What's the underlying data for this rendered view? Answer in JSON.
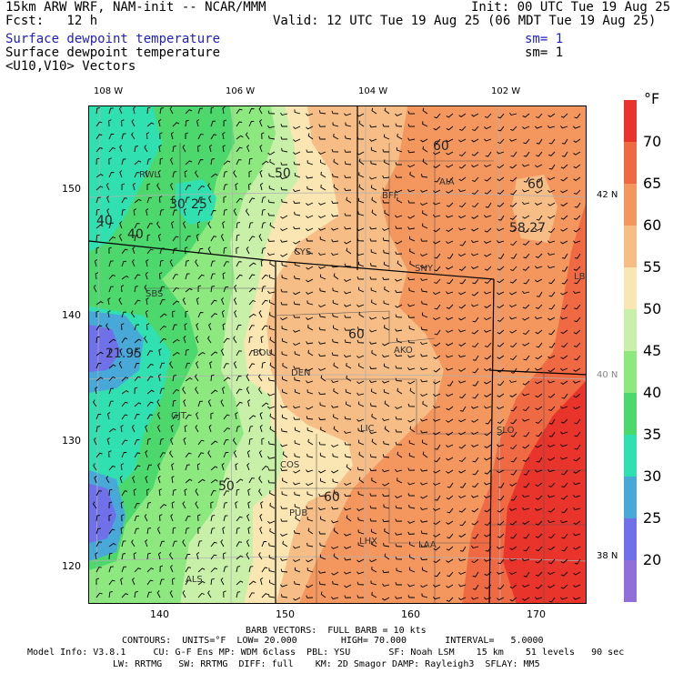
{
  "header": {
    "model_title": "15km ARW WRF, NAM-init -- NCAR/MMM",
    "init": "Init: 00 UTC Tue 19 Aug 25",
    "fcst": "Fcst:   12 h",
    "valid": "Valid: 12 UTC Tue 19 Aug 25 (06 MDT Tue 19 Aug 25)",
    "field1": "Surface dewpoint temperature",
    "field1_sm": "sm= 1",
    "field2": "Surface dewpoint temperature",
    "field2_sm": "sm= 1",
    "field3": "<U10,V10> Vectors"
  },
  "colors": {
    "field1_text": "#2020c0",
    "border": "#000000",
    "grid": "#b0b0b0"
  },
  "top_lon_labels": [
    "108 W",
    "106 W",
    "104 W",
    "102 W"
  ],
  "right_lat_labels": [
    "42 N",
    "40 N",
    "38 N"
  ],
  "left_grid_labels": [
    "150",
    "140",
    "130",
    "120"
  ],
  "bottom_grid_labels": [
    "140",
    "150",
    "160",
    "170"
  ],
  "legend": {
    "unit": "°F",
    "labels": [
      "70",
      "65",
      "60",
      "55",
      "50",
      "45",
      "40",
      "35",
      "30",
      "25",
      "20"
    ],
    "colors": [
      "#e8342a",
      "#ef6a42",
      "#f3975f",
      "#f6be86",
      "#f9e6b2",
      "#c8f0a8",
      "#8ee880",
      "#4cd86c",
      "#30e0b0",
      "#48a8d8",
      "#7070e8",
      "#9070d8"
    ]
  },
  "stations": [
    "RWL",
    "BFF",
    "AIA",
    "CYS",
    "SNY",
    "LBF",
    "SBS",
    "BOU",
    "AKO",
    "DEN",
    "LIC",
    "GJT",
    "COS",
    "SLO",
    "PUB",
    "LHX",
    "LAA",
    "ALS"
  ],
  "contour_labels": [
    "60",
    "50",
    "30",
    "25",
    "40",
    "40",
    "60",
    "58.27",
    "60",
    "21.95",
    "50",
    "60"
  ],
  "footer": {
    "line1": "BARB VECTORS:  FULL BARB = 10 kts",
    "line2": "CONTOURS:  UNITS=°F  LOW= 20.000        HIGH= 70.000       INTERVAL=   5.0000",
    "line3": "Model Info: V3.8.1     CU: G-F Ens MP: WDM 6class  PBL: YSU       SF: Noah LSM    15 km    51 levels   90 sec",
    "line4": "LW: RRTMG   SW: RRTMG  DIFF: full    KM: 2D Smagor DAMP: Rayleigh3  SFLAY: MM5"
  }
}
